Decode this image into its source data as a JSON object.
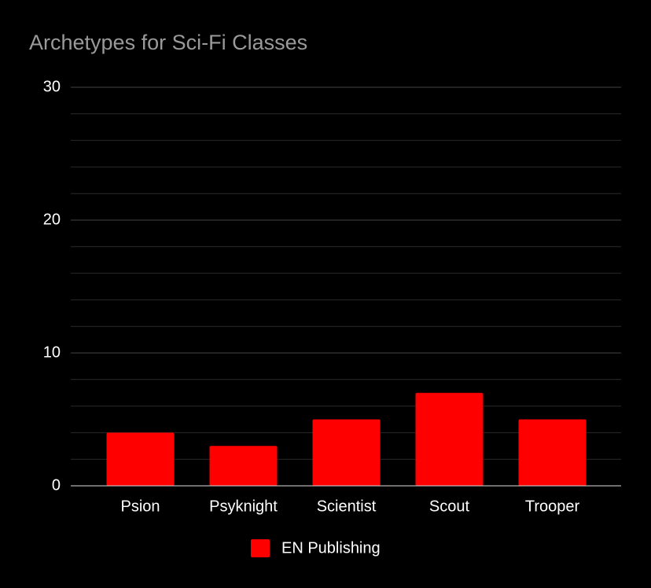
{
  "chart_data": {
    "type": "bar",
    "title": "Archetypes for Sci-Fi Classes",
    "categories": [
      "Psion",
      "Psyknight",
      "Scientist",
      "Scout",
      "Trooper"
    ],
    "series": [
      {
        "name": "EN Publishing",
        "color": "#ff0000",
        "values": [
          4,
          3,
          5,
          7,
          5
        ]
      }
    ],
    "ylim": [
      0,
      30
    ],
    "yticks": [
      0,
      10,
      20,
      30
    ],
    "minor_yticks": [
      2,
      4,
      6,
      8,
      12,
      14,
      16,
      18,
      22,
      24,
      26,
      28
    ],
    "grid": true,
    "legend": "bottom"
  }
}
